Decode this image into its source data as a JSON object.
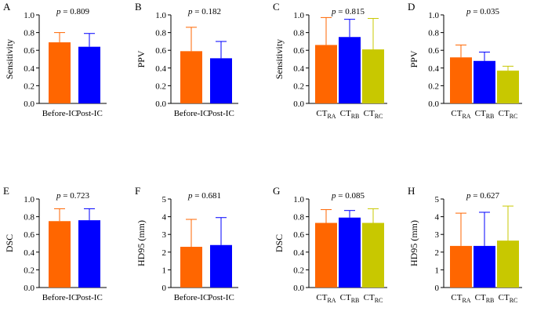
{
  "colors": {
    "before": "#ff6600",
    "post": "#0000ff",
    "ra": "#ff6600",
    "rb": "#0000ff",
    "rc": "#c8c800",
    "axis": "#000000"
  },
  "chart_data": [
    {
      "panel": "A",
      "type": "bar",
      "ylabel": "Sensitivity",
      "ylim": [
        0,
        1.0
      ],
      "yticks": [
        "0.0",
        "0.2",
        "0.4",
        "0.6",
        "0.8",
        "1.0"
      ],
      "pvalue": "p = 0.809",
      "categories": [
        {
          "label": "Before-IC",
          "sub": ""
        },
        {
          "label": "Post-IC",
          "sub": ""
        }
      ],
      "values": [
        0.69,
        0.64
      ],
      "errors": [
        0.11,
        0.15
      ],
      "color_keys": [
        "before",
        "post"
      ]
    },
    {
      "panel": "B",
      "type": "bar",
      "ylabel": "PPV",
      "ylim": [
        0,
        1.0
      ],
      "yticks": [
        "0.0",
        "0.2",
        "0.4",
        "0.6",
        "0.8",
        "1.0"
      ],
      "pvalue": "p = 0.182",
      "categories": [
        {
          "label": "Before-IC",
          "sub": ""
        },
        {
          "label": "Post-IC",
          "sub": ""
        }
      ],
      "values": [
        0.59,
        0.51
      ],
      "errors": [
        0.27,
        0.19
      ],
      "color_keys": [
        "before",
        "post"
      ]
    },
    {
      "panel": "C",
      "type": "bar",
      "ylabel": "Sensitivity",
      "ylim": [
        0,
        1.0
      ],
      "yticks": [
        "0.0",
        "0.2",
        "0.4",
        "0.6",
        "0.8",
        "1.0"
      ],
      "pvalue": "p = 0.815",
      "categories": [
        {
          "label": "CT",
          "sub": "RA"
        },
        {
          "label": "CT",
          "sub": "RB"
        },
        {
          "label": "CT",
          "sub": "RC"
        }
      ],
      "values": [
        0.66,
        0.75,
        0.61
      ],
      "errors": [
        0.31,
        0.2,
        0.35
      ],
      "color_keys": [
        "ra",
        "rb",
        "rc"
      ]
    },
    {
      "panel": "D",
      "type": "bar",
      "ylabel": "PPV",
      "ylim": [
        0,
        1.0
      ],
      "yticks": [
        "0.0",
        "0.2",
        "0.4",
        "0.6",
        "0.8",
        "1.0"
      ],
      "pvalue": "p = 0.035",
      "categories": [
        {
          "label": "CT",
          "sub": "RA"
        },
        {
          "label": "CT",
          "sub": "RB"
        },
        {
          "label": "CT",
          "sub": "RC"
        }
      ],
      "values": [
        0.52,
        0.48,
        0.37
      ],
      "errors": [
        0.14,
        0.1,
        0.05
      ],
      "color_keys": [
        "ra",
        "rb",
        "rc"
      ]
    },
    {
      "panel": "E",
      "type": "bar",
      "ylabel": "DSC",
      "ylim": [
        0,
        1.0
      ],
      "yticks": [
        "0.0",
        "0.2",
        "0.4",
        "0.6",
        "0.8",
        "1.0"
      ],
      "pvalue": "p = 0.723",
      "categories": [
        {
          "label": "Before-IC",
          "sub": ""
        },
        {
          "label": "Post-IC",
          "sub": ""
        }
      ],
      "values": [
        0.75,
        0.76
      ],
      "errors": [
        0.14,
        0.13
      ],
      "color_keys": [
        "before",
        "post"
      ]
    },
    {
      "panel": "F",
      "type": "bar",
      "ylabel": "HD95 (mm)",
      "ylim": [
        0,
        5
      ],
      "yticks": [
        "0",
        "1",
        "2",
        "3",
        "4",
        "5"
      ],
      "pvalue": "p = 0.681",
      "categories": [
        {
          "label": "Before-IC",
          "sub": ""
        },
        {
          "label": "Post-IC",
          "sub": ""
        }
      ],
      "values": [
        2.3,
        2.4
      ],
      "errors": [
        1.55,
        1.55
      ],
      "color_keys": [
        "before",
        "post"
      ]
    },
    {
      "panel": "G",
      "type": "bar",
      "ylabel": "DSC",
      "ylim": [
        0,
        1.0
      ],
      "yticks": [
        "0.0",
        "0.2",
        "0.4",
        "0.6",
        "0.8",
        "1.0"
      ],
      "pvalue": "p = 0.085",
      "categories": [
        {
          "label": "CT",
          "sub": "RA"
        },
        {
          "label": "CT",
          "sub": "RB"
        },
        {
          "label": "CT",
          "sub": "RC"
        }
      ],
      "values": [
        0.73,
        0.79,
        0.73
      ],
      "errors": [
        0.15,
        0.08,
        0.16
      ],
      "color_keys": [
        "ra",
        "rb",
        "rc"
      ]
    },
    {
      "panel": "H",
      "type": "bar",
      "ylabel": "HD95 (mm)",
      "ylim": [
        0,
        5
      ],
      "yticks": [
        "0",
        "1",
        "2",
        "3",
        "4",
        "5"
      ],
      "pvalue": "p = 0.627",
      "categories": [
        {
          "label": "CT",
          "sub": "RA"
        },
        {
          "label": "CT",
          "sub": "RB"
        },
        {
          "label": "CT",
          "sub": "RC"
        }
      ],
      "values": [
        2.35,
        2.35,
        2.65
      ],
      "errors": [
        1.85,
        1.9,
        1.95
      ],
      "color_keys": [
        "ra",
        "rb",
        "rc"
      ]
    }
  ]
}
